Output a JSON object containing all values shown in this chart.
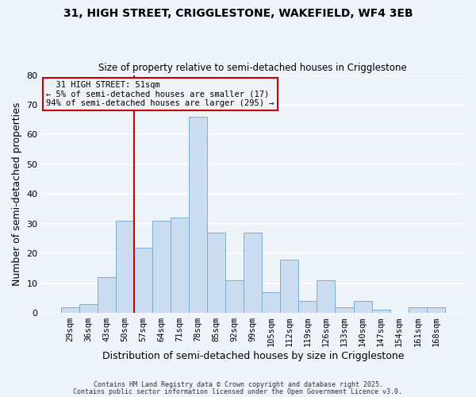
{
  "title_line1": "31, HIGH STREET, CRIGGLESTONE, WAKEFIELD, WF4 3EB",
  "title_line2": "Size of property relative to semi-detached houses in Crigglestone",
  "xlabel": "Distribution of semi-detached houses by size in Crigglestone",
  "ylabel": "Number of semi-detached properties",
  "footer_line1": "Contains HM Land Registry data © Crown copyright and database right 2025.",
  "footer_line2": "Contains public sector information licensed under the Open Government Licence v3.0.",
  "bar_labels": [
    "29sqm",
    "36sqm",
    "43sqm",
    "50sqm",
    "57sqm",
    "64sqm",
    "71sqm",
    "78sqm",
    "85sqm",
    "92sqm",
    "99sqm",
    "105sqm",
    "112sqm",
    "119sqm",
    "126sqm",
    "133sqm",
    "140sqm",
    "147sqm",
    "154sqm",
    "161sqm",
    "168sqm"
  ],
  "bar_values": [
    2,
    3,
    12,
    31,
    22,
    31,
    32,
    66,
    27,
    11,
    27,
    7,
    18,
    4,
    11,
    2,
    4,
    1,
    0,
    2,
    2
  ],
  "bar_color": "#c9dcf0",
  "bar_edgecolor": "#7aadd4",
  "vline_color": "#cc0000",
  "annotation_title": "31 HIGH STREET: 51sqm",
  "annotation_line1": "← 5% of semi-detached houses are smaller (17)",
  "annotation_line2": "94% of semi-detached houses are larger (295) →",
  "annotation_box_edgecolor": "#cc0000",
  "ylim": [
    0,
    80
  ],
  "yticks": [
    0,
    10,
    20,
    30,
    40,
    50,
    60,
    70,
    80
  ],
  "background_color": "#eef2f9",
  "grid_color": "#ffffff"
}
